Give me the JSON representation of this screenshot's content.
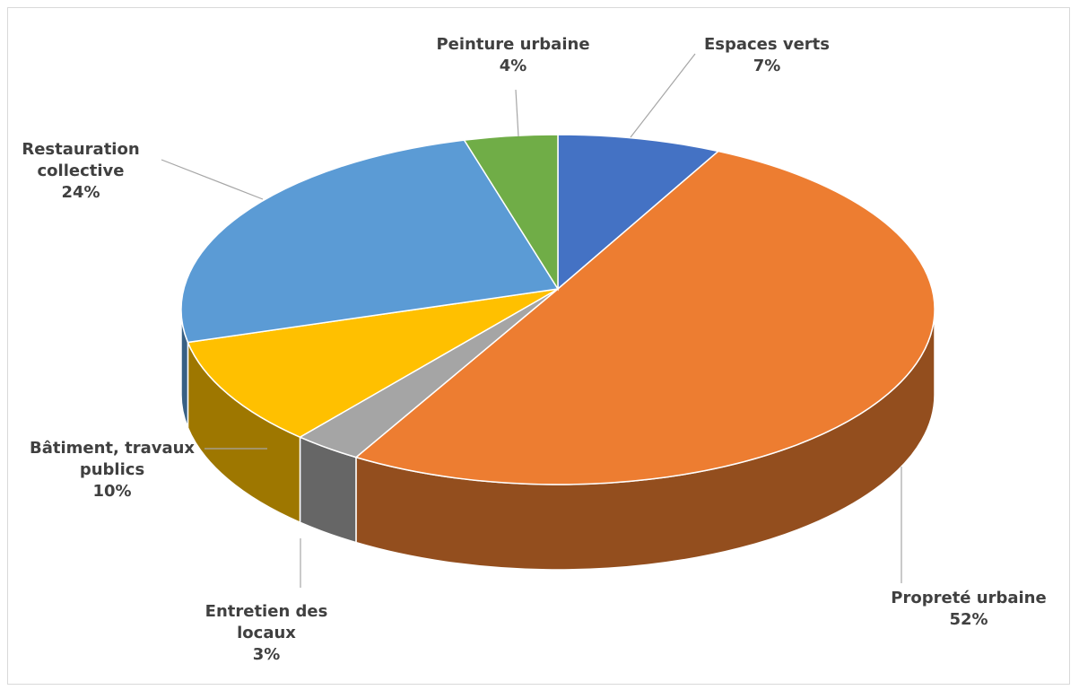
{
  "chart_data": {
    "type": "pie3d",
    "categories": [
      "Espaces verts",
      "Propreté urbaine",
      "Entretien des locaux",
      "Bâtiment, travaux publics",
      "Restauration collective",
      "Peinture urbaine"
    ],
    "values": [
      7,
      52,
      3,
      10,
      24,
      4
    ],
    "value_labels": [
      "7%",
      "52%",
      "3%",
      "10%",
      "24%",
      "4%"
    ],
    "colors": [
      "#4472c4",
      "#ed7d31",
      "#a5a5a5",
      "#ffc000",
      "#5b9bd5",
      "#70ad47"
    ]
  }
}
